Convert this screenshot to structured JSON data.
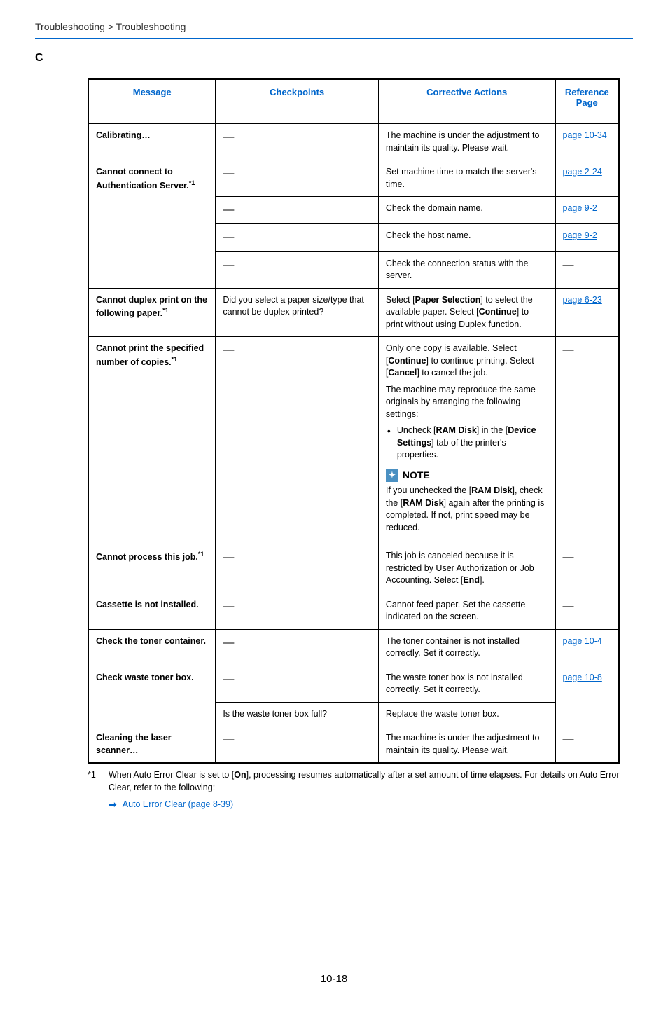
{
  "breadcrumb": "Troubleshooting > Troubleshooting",
  "section_letter": "C",
  "headers": {
    "message": "Message",
    "checkpoints": "Checkpoints",
    "actions": "Corrective Actions",
    "reference": "Reference Page"
  },
  "colors": {
    "accent": "#0066cc",
    "rule": "#0066cc",
    "note_bg": "#4a90c2"
  },
  "rows": [
    {
      "msg": "Calibrating…",
      "sup": "",
      "msg_rowspan": 1,
      "cells": [
        {
          "chk": "―",
          "act_type": "plain",
          "act": "The machine is under the adjustment to maintain its quality. Please wait.",
          "ref": "page 10-34",
          "ref_link": true
        }
      ]
    },
    {
      "msg": "Cannot connect to Authentication Server.",
      "sup": "*1",
      "msg_rowspan": 4,
      "cells": [
        {
          "chk": "―",
          "act_type": "plain",
          "act": "Set machine time to match the server's time.",
          "ref": "page 2-24",
          "ref_link": true
        },
        {
          "chk": "―",
          "act_type": "plain",
          "act": "Check the domain name.",
          "ref": "page 9-2",
          "ref_link": true
        },
        {
          "chk": "―",
          "act_type": "plain",
          "act": "Check the host name.",
          "ref": "page 9-2",
          "ref_link": true
        },
        {
          "chk": "―",
          "act_type": "plain",
          "act": "Check the connection status with the server.",
          "ref": "―",
          "ref_link": false
        }
      ]
    },
    {
      "msg": "Cannot duplex print on the following paper.",
      "sup": "*1",
      "msg_rowspan": 1,
      "cells": [
        {
          "chk": "Did you select a paper size/type that cannot be duplex printed?",
          "act_type": "duplex",
          "ref": "page 6-23",
          "ref_link": true
        }
      ]
    },
    {
      "msg": "Cannot print the specified number of copies.",
      "sup": "*1",
      "msg_rowspan": 1,
      "cells": [
        {
          "chk": "―",
          "act_type": "copies",
          "ref": "―",
          "ref_link": false
        }
      ]
    },
    {
      "msg": "Cannot process this job.",
      "sup": "*1",
      "msg_rowspan": 1,
      "cells": [
        {
          "chk": "―",
          "act_type": "job",
          "ref": "―",
          "ref_link": false
        }
      ]
    },
    {
      "msg": "Cassette is not installed.",
      "sup": "",
      "msg_rowspan": 1,
      "cells": [
        {
          "chk": "―",
          "act_type": "plain",
          "act": "Cannot feed paper. Set the cassette indicated on the screen.",
          "ref": "―",
          "ref_link": false
        }
      ]
    },
    {
      "msg": "Check the toner container.",
      "sup": "",
      "msg_rowspan": 1,
      "cells": [
        {
          "chk": "―",
          "act_type": "plain",
          "act": "The toner container is not installed correctly. Set it correctly.",
          "ref": "page 10-4",
          "ref_link": true
        }
      ]
    },
    {
      "msg": "Check waste toner box.",
      "sup": "",
      "msg_rowspan": 2,
      "ref_rowspan": 2,
      "cells": [
        {
          "chk": "―",
          "act_type": "plain",
          "act": "The waste toner box is not installed correctly. Set it correctly.",
          "ref": "page 10-8",
          "ref_link": true
        },
        {
          "chk": "Is the waste toner box full?",
          "act_type": "plain",
          "act": "Replace the waste toner box."
        }
      ]
    },
    {
      "msg": "Cleaning the laser scanner…",
      "sup": "",
      "msg_rowspan": 1,
      "cells": [
        {
          "chk": "―",
          "act_type": "plain",
          "act": "The machine is under the adjustment to maintain its quality. Please wait.",
          "ref": "―",
          "ref_link": false
        }
      ]
    }
  ],
  "duplex_action": {
    "p1_a": "Select [",
    "p1_b": "Paper Selection",
    "p1_c": "] to select the available paper. Select [",
    "p1_d": "Continue",
    "p1_e": "] to print without using Duplex function."
  },
  "copies_action": {
    "p1_a": "Only one copy is available. Select [",
    "p1_b": "Continue",
    "p1_c": "] to continue printing. Select [",
    "p1_d": "Cancel",
    "p1_e": "] to cancel the job.",
    "p2": "The machine may reproduce the same originals by arranging the following settings:",
    "bullet_a": "Uncheck [",
    "bullet_b": "RAM Disk",
    "bullet_c": "] in the [",
    "bullet_d": "Device Settings",
    "bullet_e": "] tab of the printer's properties.",
    "note_label": "NOTE",
    "note_a": "If you unchecked the [",
    "note_b": "RAM Disk",
    "note_c": "], check the [",
    "note_d": "RAM Disk",
    "note_e": "] again after the printing is completed. If not, print speed may be reduced."
  },
  "job_action": {
    "a": "This job is canceled because it is restricted by User Authorization or Job Accounting. Select [",
    "b": "End",
    "c": "]."
  },
  "footnote": {
    "marker": "*1",
    "text_a": "When Auto Error Clear is set to [",
    "text_b": "On",
    "text_c": "], processing resumes automatically after a set amount of time elapses. For details on Auto Error Clear, refer to the following:",
    "link": "Auto Error Clear (page 8-39)"
  },
  "page_number": "10-18"
}
